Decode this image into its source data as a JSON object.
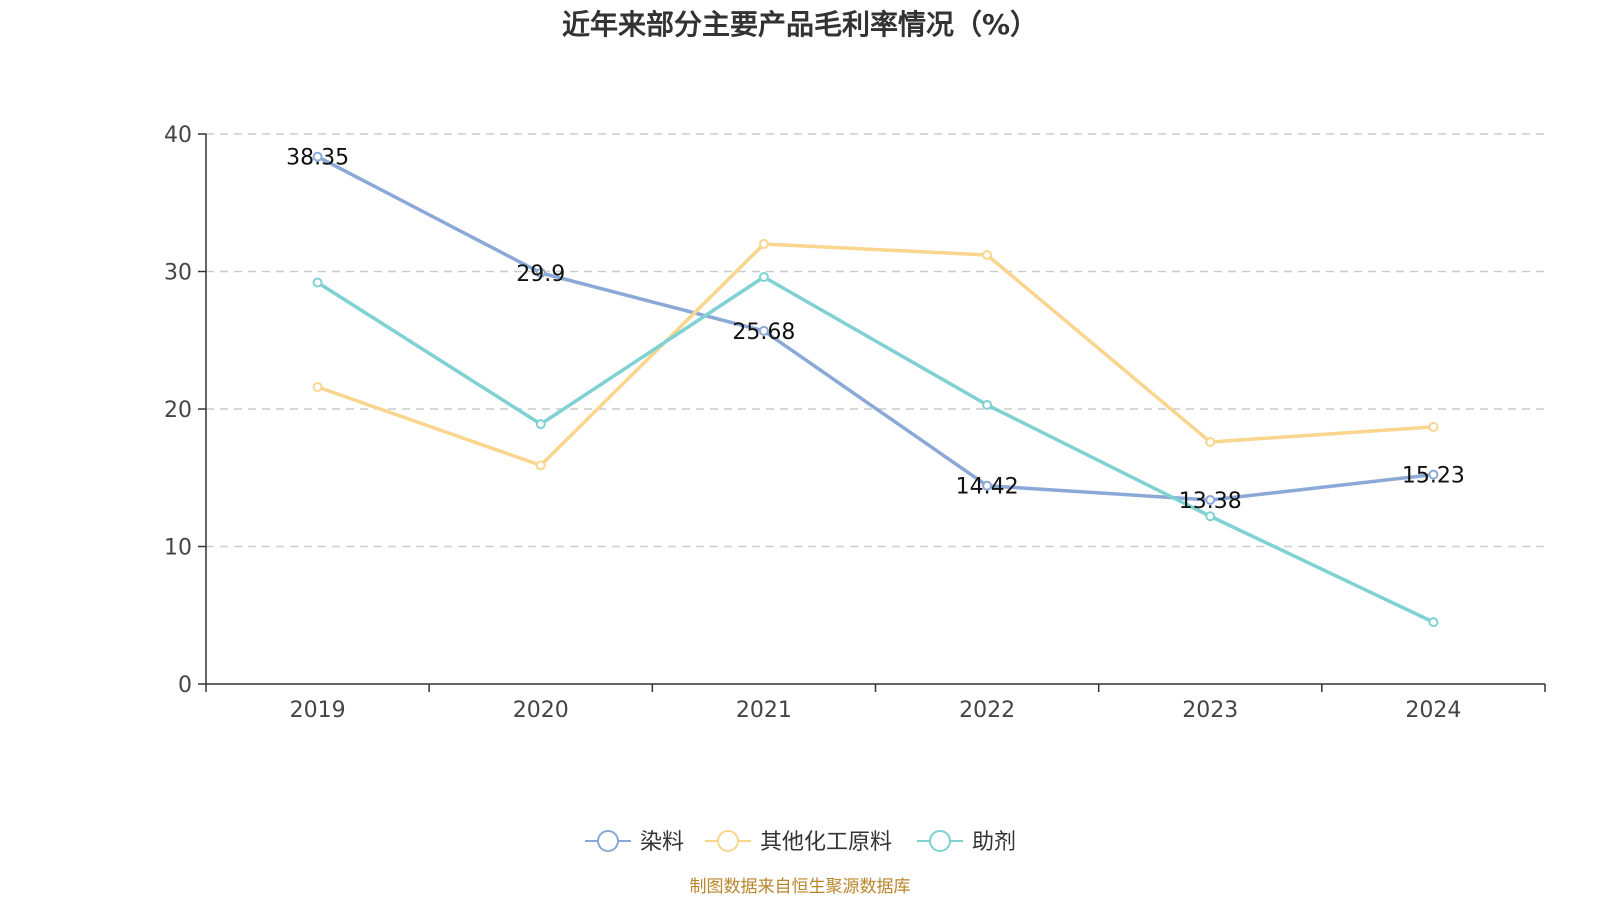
{
  "chart_data": {
    "type": "line",
    "title": "近年来部分主要产品毛利率情况（%）",
    "categories": [
      "2019",
      "2020",
      "2021",
      "2022",
      "2023",
      "2024"
    ],
    "ylim": [
      0,
      40
    ],
    "yticks": [
      0,
      10,
      20,
      30,
      40
    ],
    "grid": true,
    "legend_position": "bottom",
    "series": [
      {
        "name": "染料",
        "color": "#8ba9d6",
        "values": [
          38.35,
          29.9,
          25.68,
          14.42,
          13.38,
          15.23
        ],
        "labels": [
          "38.35",
          "29.9",
          "25.68",
          "14.42",
          "13.38",
          "15.23"
        ]
      },
      {
        "name": "其他化工原料",
        "color": "#f9d58e",
        "values": [
          21.6,
          15.9,
          32.0,
          31.2,
          17.6,
          18.7
        ],
        "labels": []
      },
      {
        "name": "助剂",
        "color": "#7fd1d3",
        "values": [
          29.2,
          18.9,
          29.6,
          20.3,
          12.2,
          4.5
        ],
        "labels": []
      }
    ],
    "source": "制图数据来自恒生聚源数据库"
  }
}
